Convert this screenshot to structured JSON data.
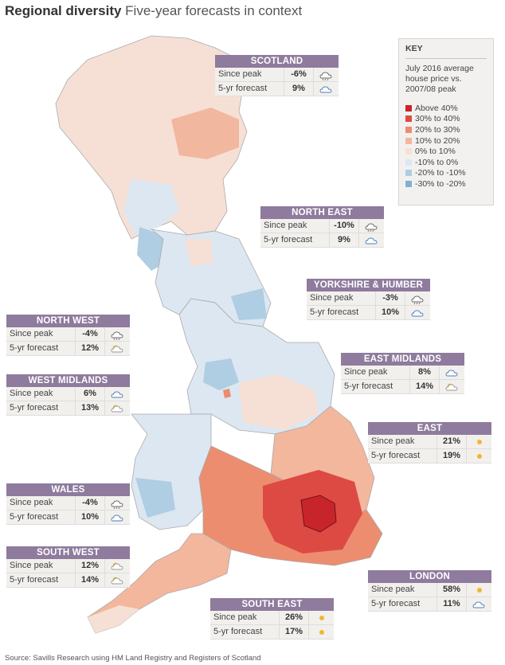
{
  "title_bold": "Regional diversity",
  "title_rest": "Five-year forecasts in context",
  "key": {
    "title": "KEY",
    "description": "July 2016 average house price vs. 2007/08 peak",
    "items": [
      {
        "label": "Above 40%",
        "color": "#c8242b"
      },
      {
        "label": "30% to 40%",
        "color": "#dd4a43"
      },
      {
        "label": "20% to 30%",
        "color": "#ec8d6f"
      },
      {
        "label": "10% to 20%",
        "color": "#f3b79d"
      },
      {
        "label": "0% to 10%",
        "color": "#f8e0d4"
      },
      {
        "label": "-10% to 0%",
        "color": "#dce7f1"
      },
      {
        "label": "-20% to -10%",
        "color": "#afcde3"
      },
      {
        "label": "-30% to -20%",
        "color": "#7fb1d6"
      }
    ]
  },
  "row_labels": {
    "since_peak": "Since peak",
    "forecast": "5-yr forecast"
  },
  "regions": [
    {
      "name": "SCOTLAND",
      "since_peak": "-6%",
      "since_icon": "rain-cloud-icon",
      "forecast": "9%",
      "forecast_icon": "cloud-icon"
    },
    {
      "name": "NORTH EAST",
      "since_peak": "-10%",
      "since_icon": "rain-cloud-icon",
      "forecast": "9%",
      "forecast_icon": "cloud-icon"
    },
    {
      "name": "YORKSHIRE & HUMBER",
      "since_peak": "-3%",
      "since_icon": "rain-cloud-icon",
      "forecast": "10%",
      "forecast_icon": "cloud-icon"
    },
    {
      "name": "NORTH WEST",
      "since_peak": "-4%",
      "since_icon": "rain-cloud-icon",
      "forecast": "12%",
      "forecast_icon": "sun-cloud-icon"
    },
    {
      "name": "EAST MIDLANDS",
      "since_peak": "8%",
      "since_icon": "cloud-icon",
      "forecast": "14%",
      "forecast_icon": "sun-cloud-icon"
    },
    {
      "name": "WEST MIDLANDS",
      "since_peak": "6%",
      "since_icon": "cloud-icon",
      "forecast": "13%",
      "forecast_icon": "sun-cloud-icon"
    },
    {
      "name": "EAST",
      "since_peak": "21%",
      "since_icon": "sun-icon",
      "forecast": "19%",
      "forecast_icon": "sun-icon"
    },
    {
      "name": "WALES",
      "since_peak": "-4%",
      "since_icon": "rain-cloud-icon",
      "forecast": "10%",
      "forecast_icon": "cloud-icon"
    },
    {
      "name": "SOUTH WEST",
      "since_peak": "12%",
      "since_icon": "sun-cloud-icon",
      "forecast": "14%",
      "forecast_icon": "sun-cloud-icon"
    },
    {
      "name": "LONDON",
      "since_peak": "58%",
      "since_icon": "sun-icon",
      "forecast": "11%",
      "forecast_icon": "cloud-icon"
    },
    {
      "name": "SOUTH EAST",
      "since_peak": "26%",
      "since_icon": "sun-icon",
      "forecast": "17%",
      "forecast_icon": "sun-icon"
    }
  ],
  "source": "Source: Savills Research using HM Land Registry and Registers of Scotland"
}
